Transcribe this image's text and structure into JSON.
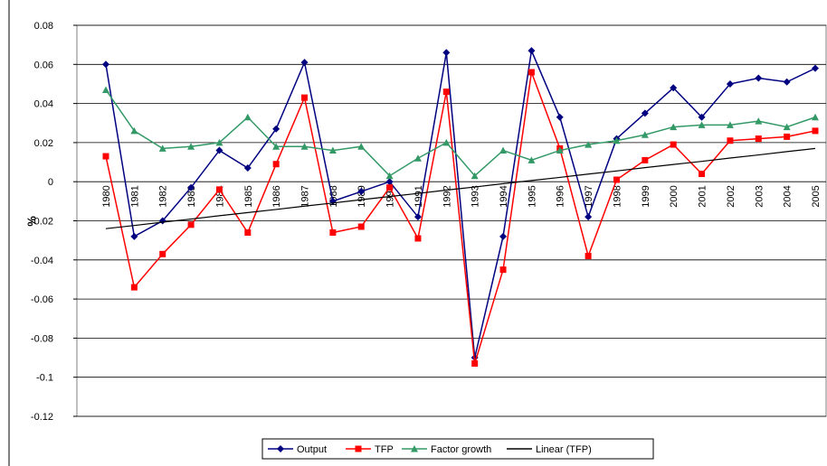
{
  "chart_data": {
    "type": "line",
    "y_label": "%",
    "categories": [
      "1980",
      "1981",
      "1982",
      "1983",
      "1984",
      "1985",
      "1986",
      "1987",
      "1988",
      "1989",
      "1990",
      "1991",
      "1992",
      "1993",
      "1994",
      "1995",
      "1996",
      "1997",
      "1998",
      "1999",
      "2000",
      "2001",
      "2002",
      "2003",
      "2004",
      "2005"
    ],
    "series": [
      {
        "name": "Output",
        "color": "#000080",
        "marker": "diamond",
        "values": [
          0.06,
          -0.028,
          -0.02,
          -0.003,
          0.016,
          0.007,
          0.027,
          0.061,
          -0.01,
          -0.005,
          0.0,
          -0.018,
          0.066,
          -0.09,
          -0.028,
          0.067,
          0.033,
          -0.018,
          0.022,
          0.035,
          0.048,
          0.033,
          0.05,
          0.053,
          0.051,
          0.058
        ]
      },
      {
        "name": "TFP",
        "color": "#ff0000",
        "marker": "square",
        "values": [
          0.013,
          -0.054,
          -0.037,
          -0.022,
          -0.004,
          -0.026,
          0.009,
          0.043,
          -0.026,
          -0.023,
          -0.003,
          -0.029,
          0.046,
          -0.093,
          -0.045,
          0.056,
          0.017,
          -0.038,
          0.001,
          0.011,
          0.019,
          0.004,
          0.021,
          0.022,
          0.023,
          0.026
        ]
      },
      {
        "name": "Factor growth",
        "color": "#339966",
        "marker": "triangle",
        "values": [
          0.047,
          0.026,
          0.017,
          0.018,
          0.02,
          0.033,
          0.018,
          0.018,
          0.016,
          0.018,
          0.003,
          0.012,
          0.02,
          0.003,
          0.016,
          0.011,
          0.016,
          0.019,
          0.021,
          0.024,
          0.028,
          0.029,
          0.029,
          0.031,
          0.028,
          0.033
        ]
      },
      {
        "name": "Linear (TFP)",
        "color": "#000000",
        "marker": "none",
        "values": [
          -0.024,
          -0.0224,
          -0.0207,
          -0.0191,
          -0.0174,
          -0.0158,
          -0.0142,
          -0.0125,
          -0.0109,
          -0.0092,
          -0.0076,
          -0.006,
          -0.0043,
          -0.0027,
          -0.001,
          0.0006,
          0.0022,
          0.0039,
          0.0055,
          0.0072,
          0.0088,
          0.0104,
          0.0121,
          0.0137,
          0.0154,
          0.017
        ]
      }
    ],
    "ylim": [
      -0.12,
      0.08
    ],
    "yticks": [
      -0.12,
      -0.1,
      -0.08,
      -0.06,
      -0.04,
      -0.02,
      0,
      0.02,
      0.04,
      0.06,
      0.08
    ],
    "grid": true,
    "legend": "bottom"
  }
}
